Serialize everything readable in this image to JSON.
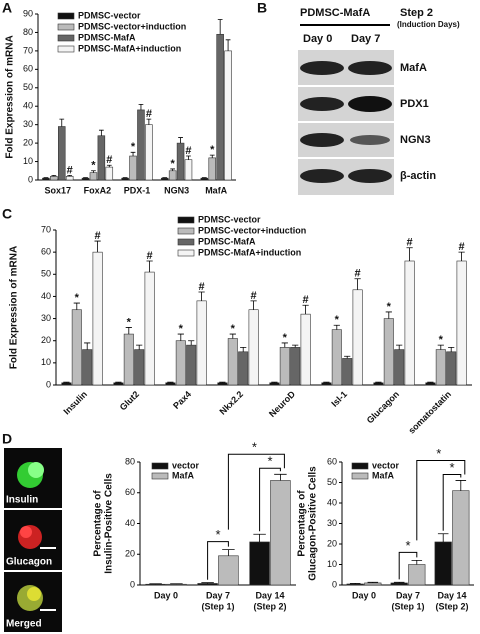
{
  "panel_letters": [
    "A",
    "B",
    "C",
    "D"
  ],
  "chart_data": [
    {
      "type": "bar",
      "ylabel": [
        "Fold Expression of mRNA"
      ],
      "categories": [
        "Sox17",
        "FoxA2",
        "PDX-1",
        "NGN3",
        "MafA"
      ],
      "ylim": [
        0,
        90
      ],
      "yticks": [
        0,
        10,
        20,
        30,
        40,
        50,
        60,
        70,
        80,
        90
      ],
      "series": [
        {
          "name": "PDMSC-vector",
          "color": "#111111",
          "values": [
            1,
            1,
            1,
            1,
            1
          ],
          "errors": [
            0.3,
            0.3,
            0.3,
            0.3,
            0.3
          ]
        },
        {
          "name": "PDMSC-vector+induction",
          "color": "#bbbbbb",
          "values": [
            2,
            4,
            13,
            5,
            12
          ],
          "errors": [
            0.5,
            1,
            2,
            1,
            1.5
          ],
          "markers": [
            null,
            "*",
            "*",
            "*",
            "*"
          ]
        },
        {
          "name": "PDMSC-MafA",
          "color": "#666666",
          "values": [
            29,
            24,
            38,
            20,
            79
          ],
          "errors": [
            4,
            3,
            3,
            3,
            8
          ]
        },
        {
          "name": "PDMSC-MafA+induction",
          "color": "#f4f4f4",
          "values": [
            2,
            7,
            30,
            11,
            70
          ],
          "errors": [
            0.5,
            1,
            3,
            2,
            6
          ],
          "markers": [
            "#",
            "#",
            "#",
            "#",
            null
          ]
        }
      ]
    },
    {
      "type": "bar",
      "ylabel": [
        "Fold Expression of mRNA"
      ],
      "categories": [
        "Insulin",
        "Glut2",
        "Pax4",
        "Nkx2.2",
        "NeuroD",
        "Isl-1",
        "Glucagon",
        "somatostatin"
      ],
      "ylim": [
        0,
        70
      ],
      "yticks": [
        0,
        10,
        20,
        30,
        40,
        50,
        60,
        70
      ],
      "series": [
        {
          "name": "PDMSC-vector",
          "color": "#111111",
          "values": [
            1,
            1,
            1,
            1,
            1,
            1,
            1,
            1
          ],
          "errors": [
            0.3,
            0.3,
            0.3,
            0.3,
            0.3,
            0.3,
            0.3,
            0.3
          ]
        },
        {
          "name": "PDMSC-vector+induction",
          "color": "#bbbbbb",
          "values": [
            34,
            23,
            20,
            21,
            17,
            25,
            30,
            16
          ],
          "errors": [
            3,
            3,
            3,
            2,
            2,
            2,
            3,
            2
          ],
          "markers": [
            "*",
            "*",
            "*",
            "*",
            "*",
            "*",
            "*",
            "*"
          ]
        },
        {
          "name": "PDMSC-MafA",
          "color": "#666666",
          "values": [
            16,
            16,
            18,
            15,
            17,
            12,
            16,
            15
          ],
          "errors": [
            3,
            2,
            2,
            2,
            1,
            1,
            2,
            2
          ]
        },
        {
          "name": "PDMSC-MafA+induction",
          "color": "#f4f4f4",
          "values": [
            60,
            51,
            38,
            34,
            32,
            43,
            56,
            56
          ],
          "errors": [
            5,
            5,
            4,
            4,
            4,
            5,
            6,
            4
          ],
          "markers": [
            "#",
            "#",
            "#",
            "#",
            "#",
            "#",
            "#",
            "#"
          ]
        }
      ]
    },
    {
      "type": "bar",
      "ylabel": [
        "Percentage of",
        "Insulin-Positive Cells"
      ],
      "categories": [
        "Day 0",
        "Day 7",
        "Day 14"
      ],
      "category_notes": [
        null,
        "(Step 1)",
        "(Step 2)"
      ],
      "ylim": [
        0,
        80
      ],
      "yticks": [
        0,
        20,
        40,
        60,
        80
      ],
      "annotations": [
        "*",
        "*",
        "*"
      ],
      "series": [
        {
          "name": "vector",
          "color": "#111111",
          "values": [
            0.5,
            1,
            28
          ],
          "errors": [
            0.3,
            0.5,
            5
          ]
        },
        {
          "name": "MafA",
          "color": "#bbbbbb",
          "values": [
            0.5,
            19,
            68
          ],
          "errors": [
            0.3,
            4,
            4
          ]
        }
      ]
    },
    {
      "type": "bar",
      "ylabel": [
        "Percentage of",
        "Glucagon-Positive Cells"
      ],
      "categories": [
        "Day 0",
        "Day 7",
        "Day 14"
      ],
      "category_notes": [
        null,
        "(Step 1)",
        "(Step 2)"
      ],
      "ylim": [
        0,
        60
      ],
      "yticks": [
        0,
        10,
        20,
        30,
        40,
        50,
        60
      ],
      "annotations": [
        "*",
        "*",
        "*"
      ],
      "series": [
        {
          "name": "vector",
          "color": "#111111",
          "values": [
            0.5,
            1,
            21
          ],
          "errors": [
            0.3,
            0.3,
            4
          ]
        },
        {
          "name": "MafA",
          "color": "#bbbbbb",
          "values": [
            1,
            10,
            46
          ],
          "errors": [
            0.3,
            2,
            5
          ]
        }
      ]
    }
  ],
  "blot": {
    "title": "PDMSC-MafA",
    "step": "Step 2",
    "step_note": "(Induction Days)",
    "lanes": [
      "Day 0",
      "Day 7"
    ],
    "bands": [
      "MafA",
      "PDX1",
      "NGN3",
      "β-actin"
    ]
  },
  "micro": [
    "Insulin",
    "Glucagon",
    "Merged"
  ]
}
